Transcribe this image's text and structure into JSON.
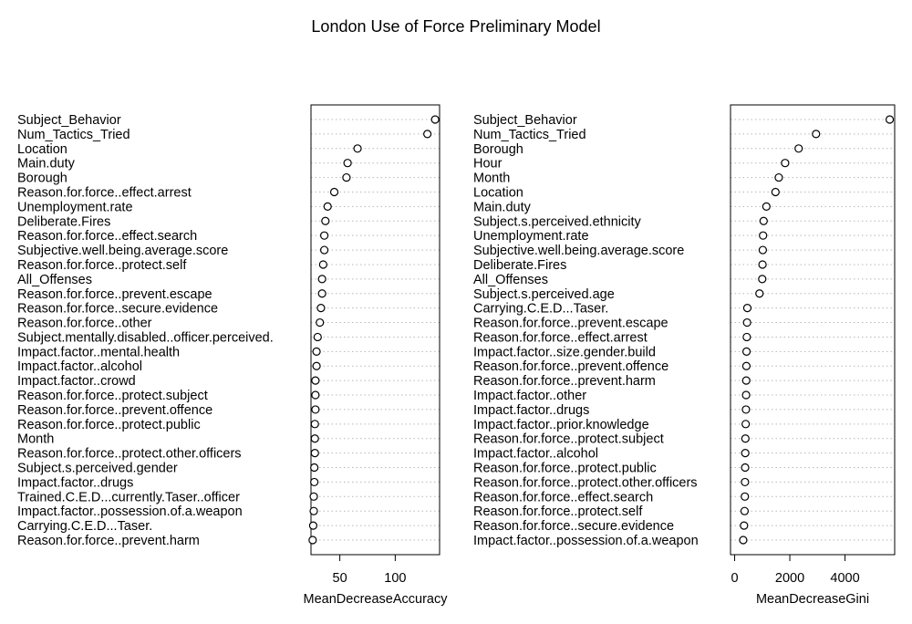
{
  "chart_data": {
    "title": "London Use of Force Preliminary Model",
    "panels": [
      {
        "type": "scatter",
        "xlabel": "MeanDecreaseAccuracy",
        "xlim": [
          24,
          140
        ],
        "xticks": [
          50,
          100
        ],
        "labels": [
          "Subject_Behavior",
          "Num_Tactics_Tried",
          "Location",
          "Main.duty",
          "Borough",
          "Reason.for.force..effect.arrest",
          "Unemployment.rate",
          "Deliberate.Fires",
          "Reason.for.force..effect.search",
          "Subjective.well.being.average.score",
          "Reason.for.force..protect.self",
          "All_Offenses",
          "Reason.for.force..prevent.escape",
          "Reason.for.force..secure.evidence",
          "Reason.for.force..other",
          "Subject.mentally.disabled..officer.perceived.",
          "Impact.factor..mental.health",
          "Impact.factor..alcohol",
          "Impact.factor..crowd",
          "Reason.for.force..protect.subject",
          "Reason.for.force..prevent.offence",
          "Reason.for.force..protect.public",
          "Month",
          "Reason.for.force..protect.other.officers",
          "Subject.s.perceived.gender",
          "Impact.factor..drugs",
          "Trained.C.E.D...currently.Taser..officer",
          "Impact.factor..possession.of.a.weapon",
          "Carrying.C.E.D...Taser.",
          "Reason.for.force..prevent.harm"
        ],
        "values": [
          136,
          129,
          66,
          57,
          56,
          45,
          39,
          37,
          36,
          36,
          35,
          34,
          34,
          33,
          32,
          30,
          29,
          29,
          28,
          28,
          28,
          27.5,
          27.5,
          27.5,
          27,
          27,
          26.5,
          26.5,
          26,
          25.5
        ]
      },
      {
        "type": "scatter",
        "xlabel": "MeanDecreaseGini",
        "xlim": [
          -150,
          5800
        ],
        "xticks": [
          0,
          2000,
          4000
        ],
        "xticklabels": [
          "0",
          "2000",
          "4000"
        ],
        "labels": [
          "Subject_Behavior",
          "Num_Tactics_Tried",
          "Borough",
          "Hour",
          "Month",
          "Location",
          "Main.duty",
          "Subject.s.perceived.ethnicity",
          "Unemployment.rate",
          "Subjective.well.being.average.score",
          "Deliberate.Fires",
          "All_Offenses",
          "Subject.s.perceived.age",
          "Carrying.C.E.D...Taser.",
          "Reason.for.force..prevent.escape",
          "Reason.for.force..effect.arrest",
          "Impact.factor..size.gender.build",
          "Reason.for.force..prevent.offence",
          "Reason.for.force..prevent.harm",
          "Impact.factor..other",
          "Impact.factor..drugs",
          "Impact.factor..prior.knowledge",
          "Reason.for.force..protect.subject",
          "Impact.factor..alcohol",
          "Reason.for.force..protect.public",
          "Reason.for.force..protect.other.officers",
          "Reason.for.force..effect.search",
          "Reason.for.force..protect.self",
          "Reason.for.force..secure.evidence",
          "Impact.factor..possession.of.a.weapon"
        ],
        "values": [
          5620,
          2950,
          2320,
          1830,
          1600,
          1480,
          1150,
          1050,
          1030,
          1020,
          1010,
          1000,
          900,
          460,
          450,
          440,
          430,
          425,
          420,
          415,
          410,
          400,
          390,
          385,
          380,
          375,
          370,
          360,
          340,
          310
        ]
      }
    ]
  }
}
